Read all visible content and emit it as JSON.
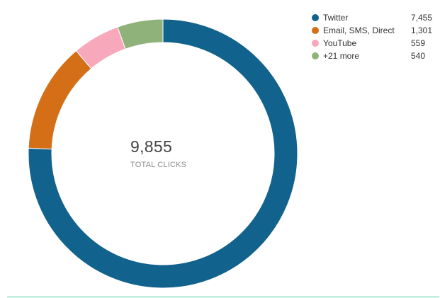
{
  "chart_data": {
    "type": "pie",
    "total": "9,855",
    "total_label": "TOTAL CLICKS",
    "categories": [
      "Twitter",
      "Email, SMS, Direct",
      "YouTube",
      "+21 more"
    ],
    "values": [
      7455,
      1301,
      559,
      540
    ],
    "value_labels": [
      "7,455",
      "1,301",
      "559",
      "540"
    ],
    "colors": [
      "#11628c",
      "#d46e17",
      "#f7a8bb",
      "#8fb27a"
    ],
    "legend_position": "top-right"
  }
}
